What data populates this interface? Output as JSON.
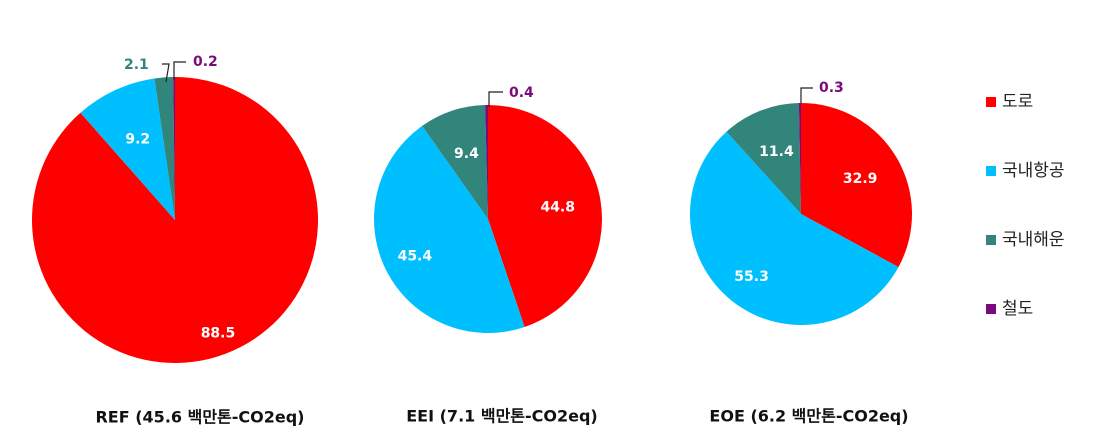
{
  "chart_data": [
    {
      "type": "pie",
      "title": "REF (45.6 백만톤-CO2eq)",
      "slices": [
        {
          "name": "도로",
          "value": 88.5
        },
        {
          "name": "국내항공",
          "value": 9.2
        },
        {
          "name": "국내해운",
          "value": 2.1
        },
        {
          "name": "철도",
          "value": 0.2
        }
      ]
    },
    {
      "type": "pie",
      "title": "EEI (7.1 백만톤-CO2eq)",
      "slices": [
        {
          "name": "도로",
          "value": 44.8
        },
        {
          "name": "국내항공",
          "value": 45.4
        },
        {
          "name": "국내해운",
          "value": 9.4
        },
        {
          "name": "철도",
          "value": 0.4
        }
      ]
    },
    {
      "type": "pie",
      "title": "EOE (6.2 백만톤-CO2eq)",
      "slices": [
        {
          "name": "도로",
          "value": 32.9
        },
        {
          "name": "국내항공",
          "value": 55.3
        },
        {
          "name": "국내해운",
          "value": 11.4
        },
        {
          "name": "철도",
          "value": 0.3
        }
      ]
    }
  ],
  "legend": [
    {
      "label": "도로",
      "color": "#ff0000"
    },
    {
      "label": "국내항공",
      "color": "#00bfff"
    },
    {
      "label": "국내해운",
      "color": "#31857a"
    },
    {
      "label": "철도",
      "color": "#7b0a7b"
    }
  ]
}
